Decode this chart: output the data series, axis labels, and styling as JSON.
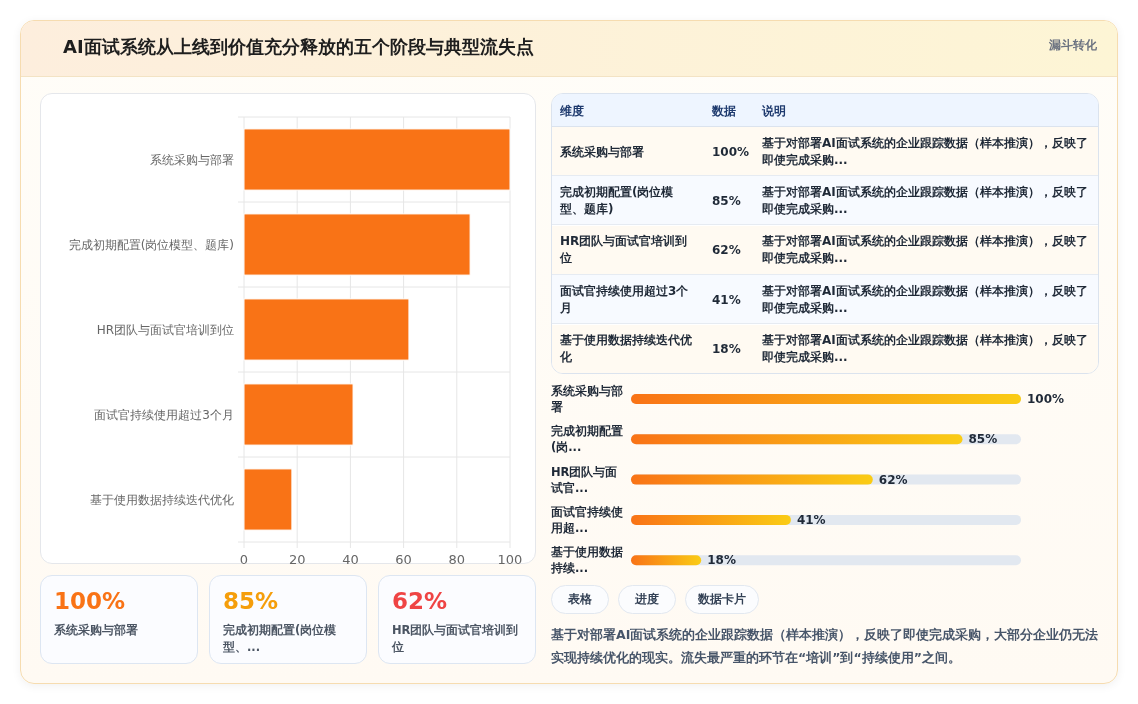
{
  "chart_data": [
    {
      "type": "bar",
      "title": "AI面试系统从上线到价值充分释放的五个阶段与典型流失点",
      "annotations": [
        "漏斗转化"
      ],
      "orientation": "horizontal",
      "categories": [
        "系统采购与部署",
        "完成初期配置(岗位模型、题库)",
        "HR团队与面试官培训到位",
        "面试官持续使用超过3个月",
        "基于使用数据持续迭代优化"
      ],
      "values": [
        100,
        85,
        62,
        41,
        18
      ],
      "color": "#f97316",
      "xlim": [
        0,
        100
      ],
      "xticks": [
        0,
        20,
        40,
        60,
        80,
        100
      ],
      "grid": true
    },
    {
      "type": "other",
      "categories": [
        "系统采购与部署",
        "完成初期配置(岗位模型、题库)",
        "HR团队与面试官培训到位",
        "面试官持续使用超过3个月",
        "基于使用数据持续迭代优化"
      ],
      "annotations": [
        "维度",
        "数据",
        "说明",
        "100%",
        "基于对部署AI面试系统的企业跟踪数据（样本推演），反映了即使完成采购...",
        "85%",
        "基于对部署AI面试系统的企业跟踪数据（样本推演），反映了即使完成采购...",
        "62%",
        "基于对部署AI面试系统的企业跟踪数据（样本推演），反映了即使完成采购...",
        "41%",
        "基于对部署AI面试系统的企业跟踪数据（样本推演），反映了即使完成采购...",
        "18%",
        "基于对部署AI面试系统的企业跟踪数据（样本推演），反映了即使完成采购..."
      ]
    },
    {
      "type": "bar",
      "orientation": "horizontal",
      "categories": [
        "系统采购与部署",
        "完成初期配置(岗...",
        "HR团队与面试官...",
        "面试官持续使用超...",
        "基于使用数据持续..."
      ],
      "values": [
        100,
        85,
        62,
        41,
        18
      ],
      "value_labels": [
        "100%",
        "85%",
        "62%",
        "41%",
        "18%"
      ],
      "color": "#f97316"
    },
    {
      "type": "other",
      "categories": [
        "系统采购与部署",
        "完成初期配置(岗位模型、...",
        "HR团队与面试官培训到位"
      ],
      "annotations": [
        "100%",
        "85%",
        "62%"
      ]
    },
    {
      "type": "other",
      "annotations": [
        "表格",
        "进度",
        "数据卡片",
        "基于对部署AI面试系统的企业跟踪数据（样本推演），反映了即使完成采购，大部分企业仍无法实现持续优化的现实。流失最严重的环节在“培训”到“持续使用”之间。"
      ]
    }
  ]
}
